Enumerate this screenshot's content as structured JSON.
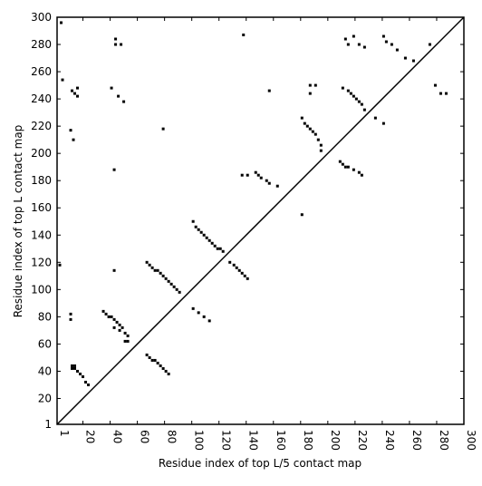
{
  "chart_data": {
    "type": "scatter",
    "xlabel": "Residue index of top L/5 contact map",
    "ylabel": "Residue index of top L contact map",
    "xlim": [
      1,
      300
    ],
    "ylim": [
      1,
      300
    ],
    "xticks": [
      1,
      20,
      40,
      60,
      80,
      100,
      120,
      140,
      160,
      180,
      200,
      220,
      240,
      260,
      280,
      300
    ],
    "yticks": [
      1,
      20,
      40,
      60,
      80,
      100,
      120,
      140,
      160,
      180,
      200,
      220,
      240,
      260,
      280,
      300
    ],
    "series": [
      {
        "color": "#000000",
        "x": [
          12,
          14,
          12,
          14,
          16,
          18,
          20,
          22,
          24,
          35,
          37,
          39,
          41,
          43,
          45,
          47,
          49,
          51,
          53,
          53,
          51,
          47,
          43,
          67,
          69,
          71,
          73,
          75,
          77,
          79,
          81,
          83,
          67,
          69,
          71,
          73,
          75,
          77,
          79,
          81,
          83,
          85,
          87,
          89,
          91,
          101,
          103,
          105,
          107,
          109,
          111,
          113,
          115,
          117,
          119,
          121,
          123,
          128,
          131,
          133,
          135,
          137,
          139,
          141,
          101,
          105,
          109,
          113,
          137,
          141,
          147,
          149,
          151,
          155,
          157,
          163,
          181,
          183,
          185,
          187,
          189,
          191,
          193,
          195,
          195,
          209,
          211,
          213,
          215,
          219,
          223,
          225,
          211,
          215,
          217,
          219,
          221,
          223,
          225,
          227,
          235,
          241,
          181,
          79,
          43,
          43,
          11,
          13,
          12,
          14,
          16,
          16,
          4,
          44,
          48,
          44,
          41,
          46,
          50,
          138,
          157,
          187,
          187,
          191,
          213,
          215,
          219,
          223,
          227,
          241,
          243,
          247,
          251,
          257,
          263,
          275,
          279,
          283,
          287,
          5,
          3,
          11,
          11
        ],
        "y": [
          44,
          44,
          42,
          42,
          40,
          38,
          36,
          32,
          30,
          84,
          82,
          80,
          80,
          78,
          76,
          74,
          72,
          68,
          66,
          62,
          62,
          70,
          72,
          52,
          50,
          48,
          48,
          46,
          44,
          42,
          40,
          38,
          120,
          118,
          116,
          114,
          114,
          112,
          110,
          108,
          106,
          104,
          102,
          100,
          98,
          150,
          146,
          144,
          142,
          140,
          138,
          136,
          134,
          132,
          130,
          130,
          128,
          120,
          118,
          116,
          114,
          112,
          110,
          108,
          86,
          83,
          80,
          77,
          184,
          184,
          186,
          184,
          182,
          180,
          178,
          176,
          226,
          222,
          220,
          218,
          216,
          214,
          210,
          206,
          202,
          194,
          192,
          190,
          190,
          188,
          186,
          184,
          248,
          246,
          244,
          242,
          240,
          238,
          236,
          232,
          226,
          222,
          155,
          218,
          188,
          114,
          217,
          210,
          246,
          244,
          242,
          248,
          296,
          284,
          280,
          280,
          248,
          242,
          238,
          287,
          246,
          250,
          244,
          250,
          284,
          280,
          286,
          280,
          278,
          286,
          282,
          280,
          276,
          270,
          268,
          280,
          250,
          244,
          244,
          254,
          118,
          82,
          78
        ]
      }
    ]
  }
}
